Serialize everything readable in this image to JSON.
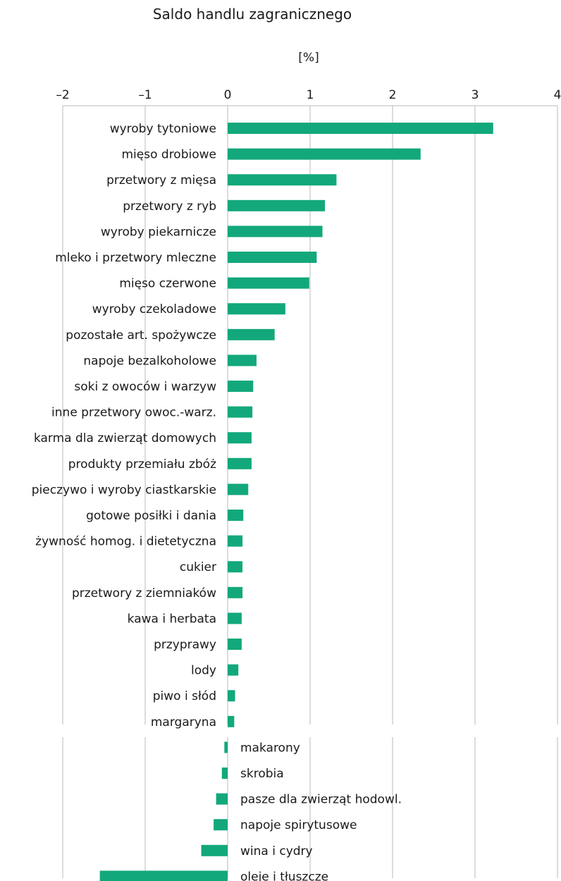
{
  "chart_data": {
    "type": "bar",
    "orientation": "horizontal",
    "title": "Saldo handlu zagranicznego",
    "xlabel": "[%]",
    "ylabel": "",
    "xlim": [
      -2,
      4
    ],
    "xticks": [
      "–2",
      "–1",
      "0",
      "1",
      "2",
      "3",
      "4"
    ],
    "grid": true,
    "bar_color": "#13a87b",
    "categories": [
      "wyroby tytoniowe",
      "mięso drobiowe",
      "przetwory z mięsa",
      "przetwory z ryb",
      "wyroby piekarnicze",
      "mleko i przetwory mleczne",
      "mięso czerwone",
      "wyroby czekoladowe",
      "pozostałe art. spożywcze",
      "napoje bezalkoholowe",
      "soki z owoców i warzyw",
      "inne przetwory owoc.-warz.",
      "karma dla zwierząt domowych",
      "produkty przemiału zbóż",
      "pieczywo i wyroby ciastkarskie",
      "gotowe posiłki i dania",
      "żywność homog. i dietetyczna",
      "cukier",
      "przetwory z ziemniaków",
      "kawa i herbata",
      "przyprawy",
      "lody",
      "piwo i słód",
      "margaryna",
      "makarony",
      "skrobia",
      "pasze dla zwierząt hodowl.",
      "napoje spirytusowe",
      "wina i cydry",
      "oleje i tłuszcze"
    ],
    "values": [
      3.22,
      2.34,
      1.32,
      1.18,
      1.15,
      1.08,
      0.99,
      0.7,
      0.57,
      0.35,
      0.31,
      0.3,
      0.29,
      0.29,
      0.25,
      0.19,
      0.18,
      0.18,
      0.18,
      0.17,
      0.17,
      0.13,
      0.09,
      0.08,
      -0.04,
      -0.07,
      -0.14,
      -0.17,
      -0.32,
      -1.55
    ]
  }
}
